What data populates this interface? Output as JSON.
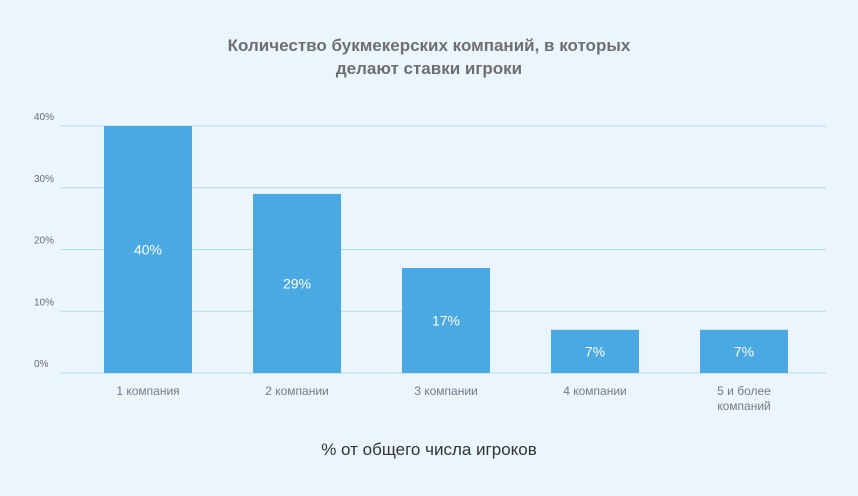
{
  "chart_data": {
    "type": "bar",
    "title_lines": [
      "Количество букмекерских компаний, в которых",
      "делают ставки игроки"
    ],
    "xlabel": "% от общего числа игроков",
    "ylabel": "",
    "categories": [
      [
        "1 компания"
      ],
      [
        "2 компании"
      ],
      [
        "3 компании"
      ],
      [
        "4 компании"
      ],
      [
        "5 и более",
        "компаний"
      ]
    ],
    "values": [
      40,
      29,
      17,
      7,
      7
    ],
    "value_labels": [
      "40%",
      "29%",
      "17%",
      "7%",
      "7%"
    ],
    "y_ticks": [
      {
        "value": 0,
        "label": "0%"
      },
      {
        "value": 10,
        "label": "10%"
      },
      {
        "value": 20,
        "label": "20%"
      },
      {
        "value": 30,
        "label": "30%"
      },
      {
        "value": 40,
        "label": "40%"
      }
    ],
    "ylim": [
      0,
      40
    ],
    "grid": true,
    "bar_color": "#4aa8e2",
    "grid_color": "#b6dbe9"
  }
}
